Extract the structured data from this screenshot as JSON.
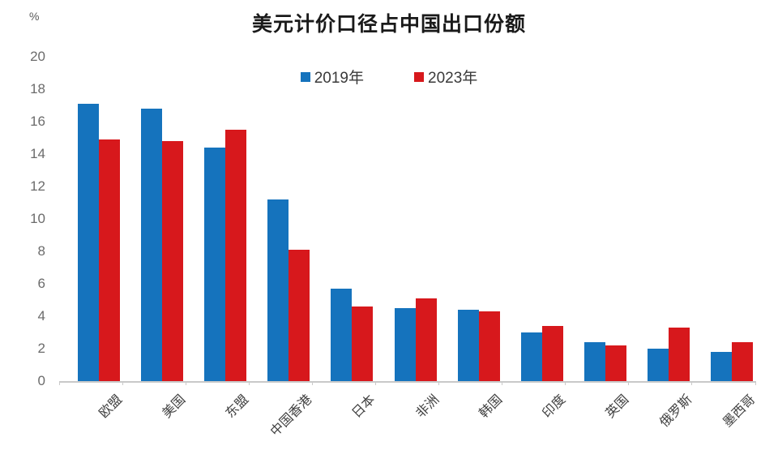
{
  "chart_data": {
    "type": "bar",
    "title": "美元计价口径占中国出口份额",
    "unit": "%",
    "xlabel": "",
    "ylabel": "%",
    "categories": [
      "欧盟",
      "美国",
      "东盟",
      "中国香港",
      "日本",
      "非洲",
      "韩国",
      "印度",
      "英国",
      "俄罗斯",
      "墨西哥"
    ],
    "series": [
      {
        "name": "2019年",
        "color": "#1573BD",
        "values": [
          17.1,
          16.8,
          14.4,
          11.2,
          5.7,
          4.5,
          4.4,
          3.0,
          2.4,
          2.0,
          1.8
        ]
      },
      {
        "name": "2023年",
        "color": "#D7181C",
        "values": [
          14.9,
          14.8,
          15.5,
          8.1,
          4.6,
          5.1,
          4.3,
          3.4,
          2.2,
          3.3,
          2.4
        ]
      }
    ],
    "ylim": [
      0,
      20
    ],
    "ytick_step": 2,
    "grid": false,
    "legend_position": "top-center",
    "axis_color": "#c9c9c9"
  }
}
